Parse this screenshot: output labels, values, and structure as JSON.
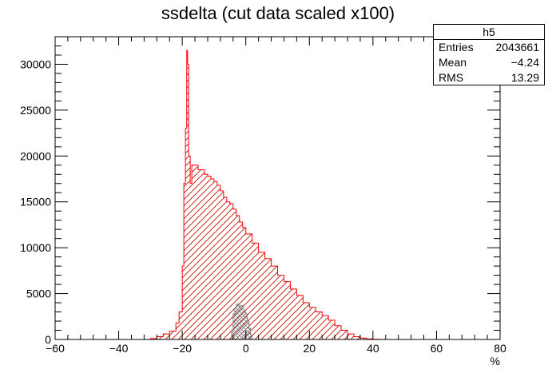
{
  "chart_data": {
    "type": "histogram",
    "title": "ssdelta (cut data scaled x100)",
    "xlabel": "%",
    "ylabel": "",
    "xlim": [
      -60,
      80
    ],
    "ylim": [
      0,
      33000
    ],
    "x_ticks": [
      -60,
      -40,
      -20,
      0,
      20,
      40,
      60,
      80
    ],
    "y_ticks": [
      0,
      5000,
      10000,
      15000,
      20000,
      25000,
      30000
    ],
    "stats_box": {
      "name": "h5",
      "entries_label": "Entries",
      "entries": "2043661",
      "mean_label": "Mean",
      "mean": "−4.24",
      "rms_label": "RMS",
      "rms": "13.29"
    },
    "series": [
      {
        "name": "",
        "color": "#ff0000",
        "fill": "hatched",
        "x": [
          -32,
          -30,
          -28,
          -26,
          -24,
          -22,
          -21,
          -20,
          -19.5,
          -19,
          -18.6,
          -18.3,
          -18,
          -17.5,
          -17,
          -16,
          -15,
          -14,
          -13,
          -12,
          -11,
          -10,
          -9,
          -8,
          -7,
          -6,
          -5,
          -4,
          -3,
          -2,
          -1,
          0,
          2,
          4,
          6,
          8,
          10,
          12,
          14,
          16,
          18,
          20,
          22,
          24,
          26,
          28,
          30,
          32,
          34,
          36,
          38,
          40,
          42,
          44,
          46,
          48,
          50
        ],
        "values": [
          0,
          100,
          300,
          600,
          900,
          1800,
          3000,
          8000,
          17000,
          23000,
          31500,
          30000,
          20000,
          17000,
          19000,
          19000,
          18500,
          18500,
          18000,
          17800,
          17500,
          17200,
          16800,
          16200,
          15500,
          15000,
          14800,
          14200,
          13500,
          12800,
          12200,
          11500,
          10500,
          9500,
          8800,
          8000,
          7000,
          6300,
          5500,
          4800,
          4000,
          3500,
          3000,
          2600,
          2100,
          1500,
          1000,
          600,
          300,
          150,
          60,
          20,
          10,
          0,
          0,
          0,
          0
        ]
      },
      {
        "name": "",
        "color": "#888888",
        "fill": "crosshatched",
        "x": [
          -5,
          -4.5,
          -4,
          -3.5,
          -3,
          -2.5,
          -2,
          -1.5,
          -1,
          -0.5,
          0,
          0.5,
          1,
          1.5,
          2
        ],
        "values": [
          0,
          800,
          2800,
          3400,
          3800,
          3900,
          3600,
          3700,
          3400,
          3000,
          2800,
          2000,
          1200,
          500,
          0
        ]
      }
    ]
  }
}
